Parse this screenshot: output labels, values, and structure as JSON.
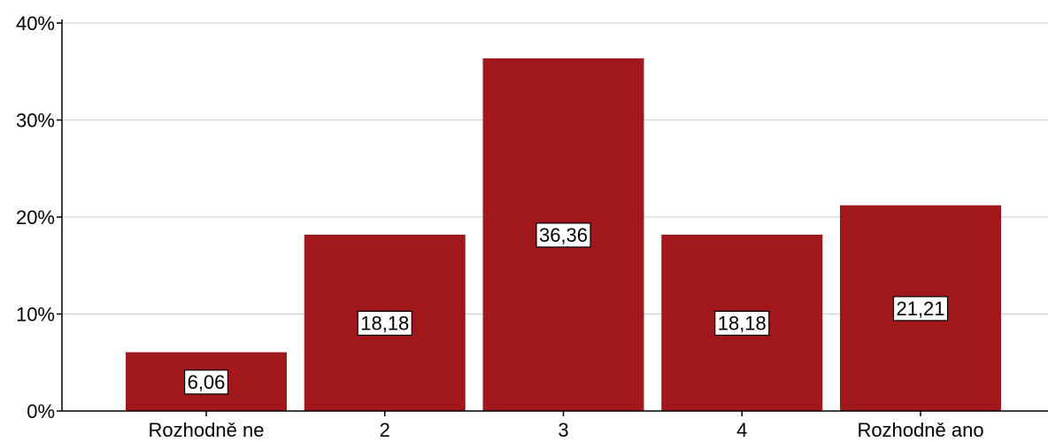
{
  "chart_data": {
    "type": "bar",
    "categories": [
      "Rozhodně ne",
      "2",
      "3",
      "4",
      "Rozhodně ano"
    ],
    "values": [
      6.06,
      18.18,
      36.36,
      18.18,
      21.21
    ],
    "data_labels": [
      "6,06",
      "18,18",
      "36,36",
      "18,18",
      "21,21"
    ],
    "y_ticks": [
      0,
      10,
      20,
      30,
      40
    ],
    "y_tick_labels": [
      "0%",
      "10%",
      "20%",
      "30%",
      "40%"
    ],
    "ylim": [
      0,
      40
    ],
    "grid": true,
    "title": "",
    "xlabel": "",
    "ylabel": "",
    "bar_color": "#a0181c"
  }
}
